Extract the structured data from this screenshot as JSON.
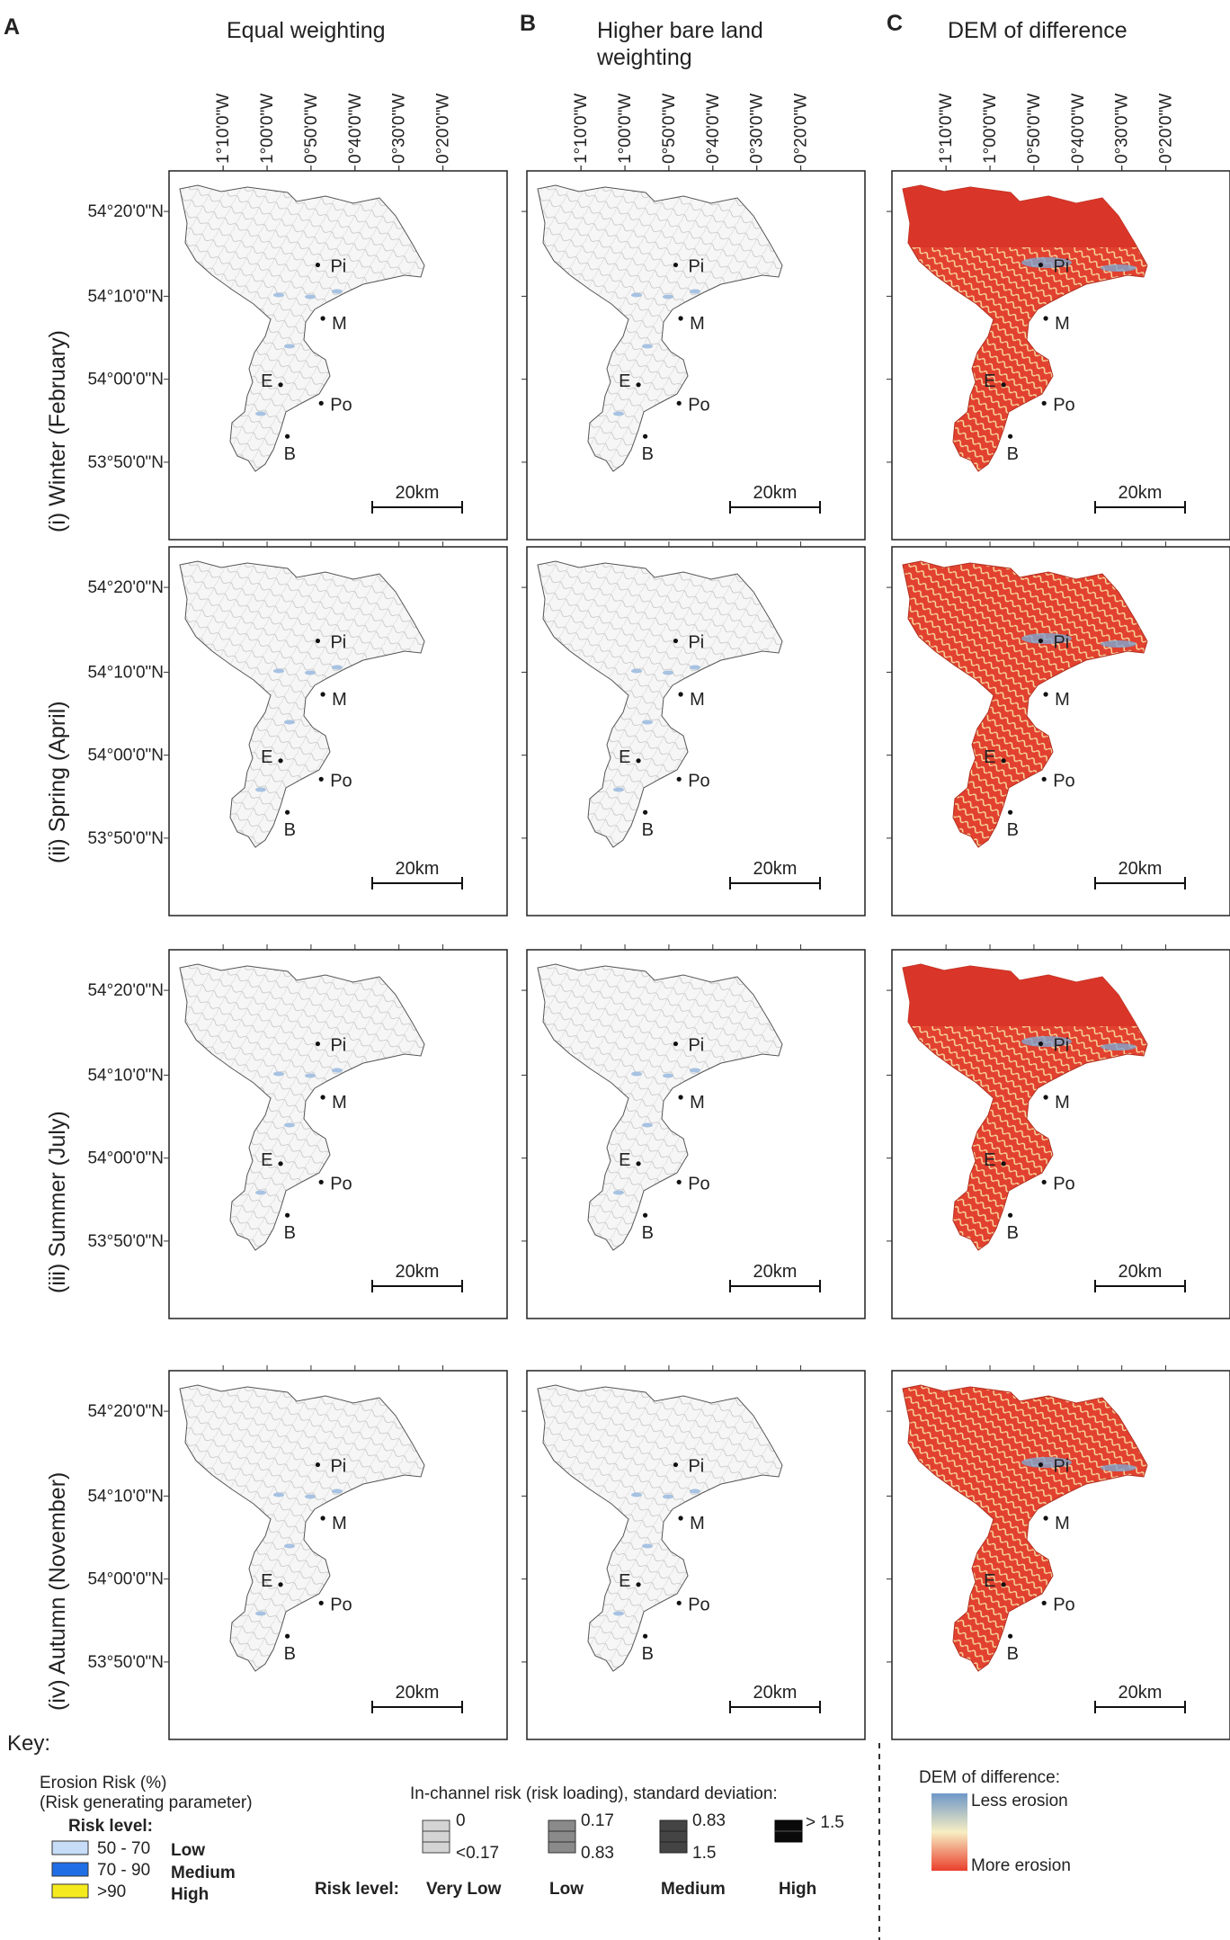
{
  "panels": {
    "A": "A",
    "B": "B",
    "C": "C"
  },
  "columns": [
    {
      "letter": "A",
      "title": "Equal weighting"
    },
    {
      "letter": "B",
      "title": "Higher bare land weighting"
    },
    {
      "letter": "C",
      "title": "DEM of difference"
    }
  ],
  "rows": [
    {
      "label": "(i) Winter (February)"
    },
    {
      "label": "(ii) Spring (April)"
    },
    {
      "label": "(iii) Summer (July)"
    },
    {
      "label": "(iv) Autumn (November)"
    }
  ],
  "longitude_labels": [
    "1°10'0\"W",
    "1°00'0\"W",
    "0°50'0\"W",
    "0°40'0\"W",
    "0°30'0\"W",
    "0°20'0\"W"
  ],
  "latitude_labels": [
    "54°20'0\"N",
    "54°10'0\"N",
    "54°00'0\"N",
    "53°50'0\"N"
  ],
  "towns": [
    "Pi",
    "M",
    "E",
    "Po",
    "B"
  ],
  "scale_bar": "20km",
  "key": {
    "title": "Key:",
    "erosion": {
      "heading1": "Erosion Risk (%)",
      "heading2": "(Risk generating parameter)",
      "risk_level_label": "Risk level:",
      "items": [
        {
          "range": "50 - 70",
          "level": "Low",
          "color": "#c6dcf7"
        },
        {
          "range": "70 - 90",
          "level": "Medium",
          "color": "#1f6ee6"
        },
        {
          "range": ">90",
          "level": "High",
          "color": "#f5ea1e"
        }
      ]
    },
    "inchannel": {
      "heading": "In-channel risk (risk loading), standard deviation:",
      "risk_level_label": "Risk level:",
      "items": [
        {
          "top": "0",
          "bottom": "<0.17",
          "level": "Very Low",
          "color": "#d4d4d4"
        },
        {
          "top": "0.17",
          "bottom": "0.83",
          "level": "Low",
          "color": "#8a8a8a"
        },
        {
          "top": "0.83",
          "bottom": "1.5",
          "level": "Medium",
          "color": "#444444"
        },
        {
          "top": "> 1.5",
          "bottom": "",
          "level": "High",
          "color": "#0a0a0a"
        }
      ]
    },
    "dem": {
      "heading": "DEM of difference:",
      "less": "Less erosion",
      "more": "More erosion",
      "gradient": [
        "#6e98c8",
        "#f7eec3",
        "#ea3f2c"
      ]
    }
  },
  "colors": {
    "dem_red": "#e2412f",
    "dem_dark_red": "#d93528",
    "dem_light": "#f6d9a0",
    "dem_blue": "#7fa6cf"
  }
}
